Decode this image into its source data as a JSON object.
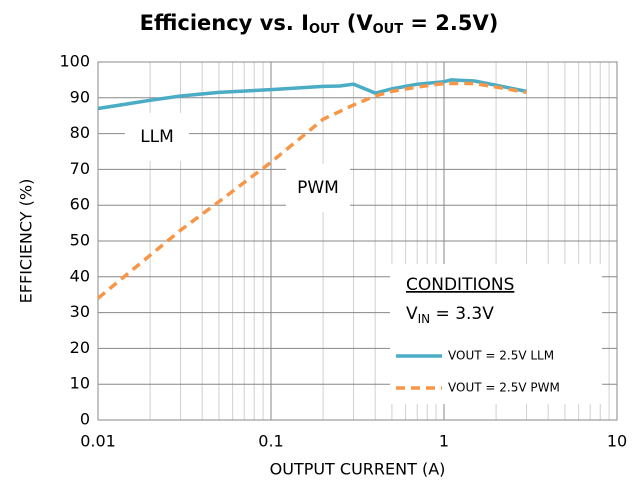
{
  "chart_data": {
    "type": "line",
    "title": [
      "Efficiency vs. I",
      "OUT",
      " (V",
      "OUT",
      " = 2.5V)"
    ],
    "x_label": "OUTPUT CURRENT (A)",
    "y_label": "EFFICIENCY (%)",
    "log_x": true,
    "grid": true,
    "xlim": [
      0.01,
      10
    ],
    "xticks": [
      0.01,
      0.1,
      1,
      10
    ],
    "ylim": [
      0,
      100
    ],
    "yticks": [
      0,
      10,
      20,
      30,
      40,
      50,
      60,
      70,
      80,
      90,
      100
    ],
    "annotations": [
      "LLM",
      "PWM"
    ],
    "conditions_title": "CONDITIONS",
    "conditions": [
      "V",
      "IN",
      " = 3.3V"
    ],
    "series": [
      {
        "name": "VOUT = 2.5V LLM",
        "color": "#4bacc6",
        "dash": false,
        "x": [
          0.01,
          0.02,
          0.03,
          0.05,
          0.1,
          0.2,
          0.25,
          0.3,
          0.35,
          0.4,
          0.5,
          0.7,
          1,
          1.1,
          1.5,
          2,
          3
        ],
        "values": [
          87,
          89.3,
          90.5,
          91.5,
          92.3,
          93.2,
          93.3,
          93.8,
          92.5,
          91.3,
          92.5,
          93.8,
          94.5,
          95,
          94.7,
          93.5,
          91.8
        ]
      },
      {
        "name": "VOUT = 2.5V PWM",
        "color": "#f79646",
        "dash": true,
        "x": [
          0.01,
          0.02,
          0.03,
          0.05,
          0.1,
          0.15,
          0.2,
          0.3,
          0.4,
          0.5,
          0.7,
          1,
          1.5,
          2,
          3
        ],
        "values": [
          34,
          46,
          53,
          61,
          72,
          79,
          84,
          88,
          90.5,
          91.8,
          93,
          94,
          94,
          93,
          91.5
        ]
      }
    ]
  }
}
